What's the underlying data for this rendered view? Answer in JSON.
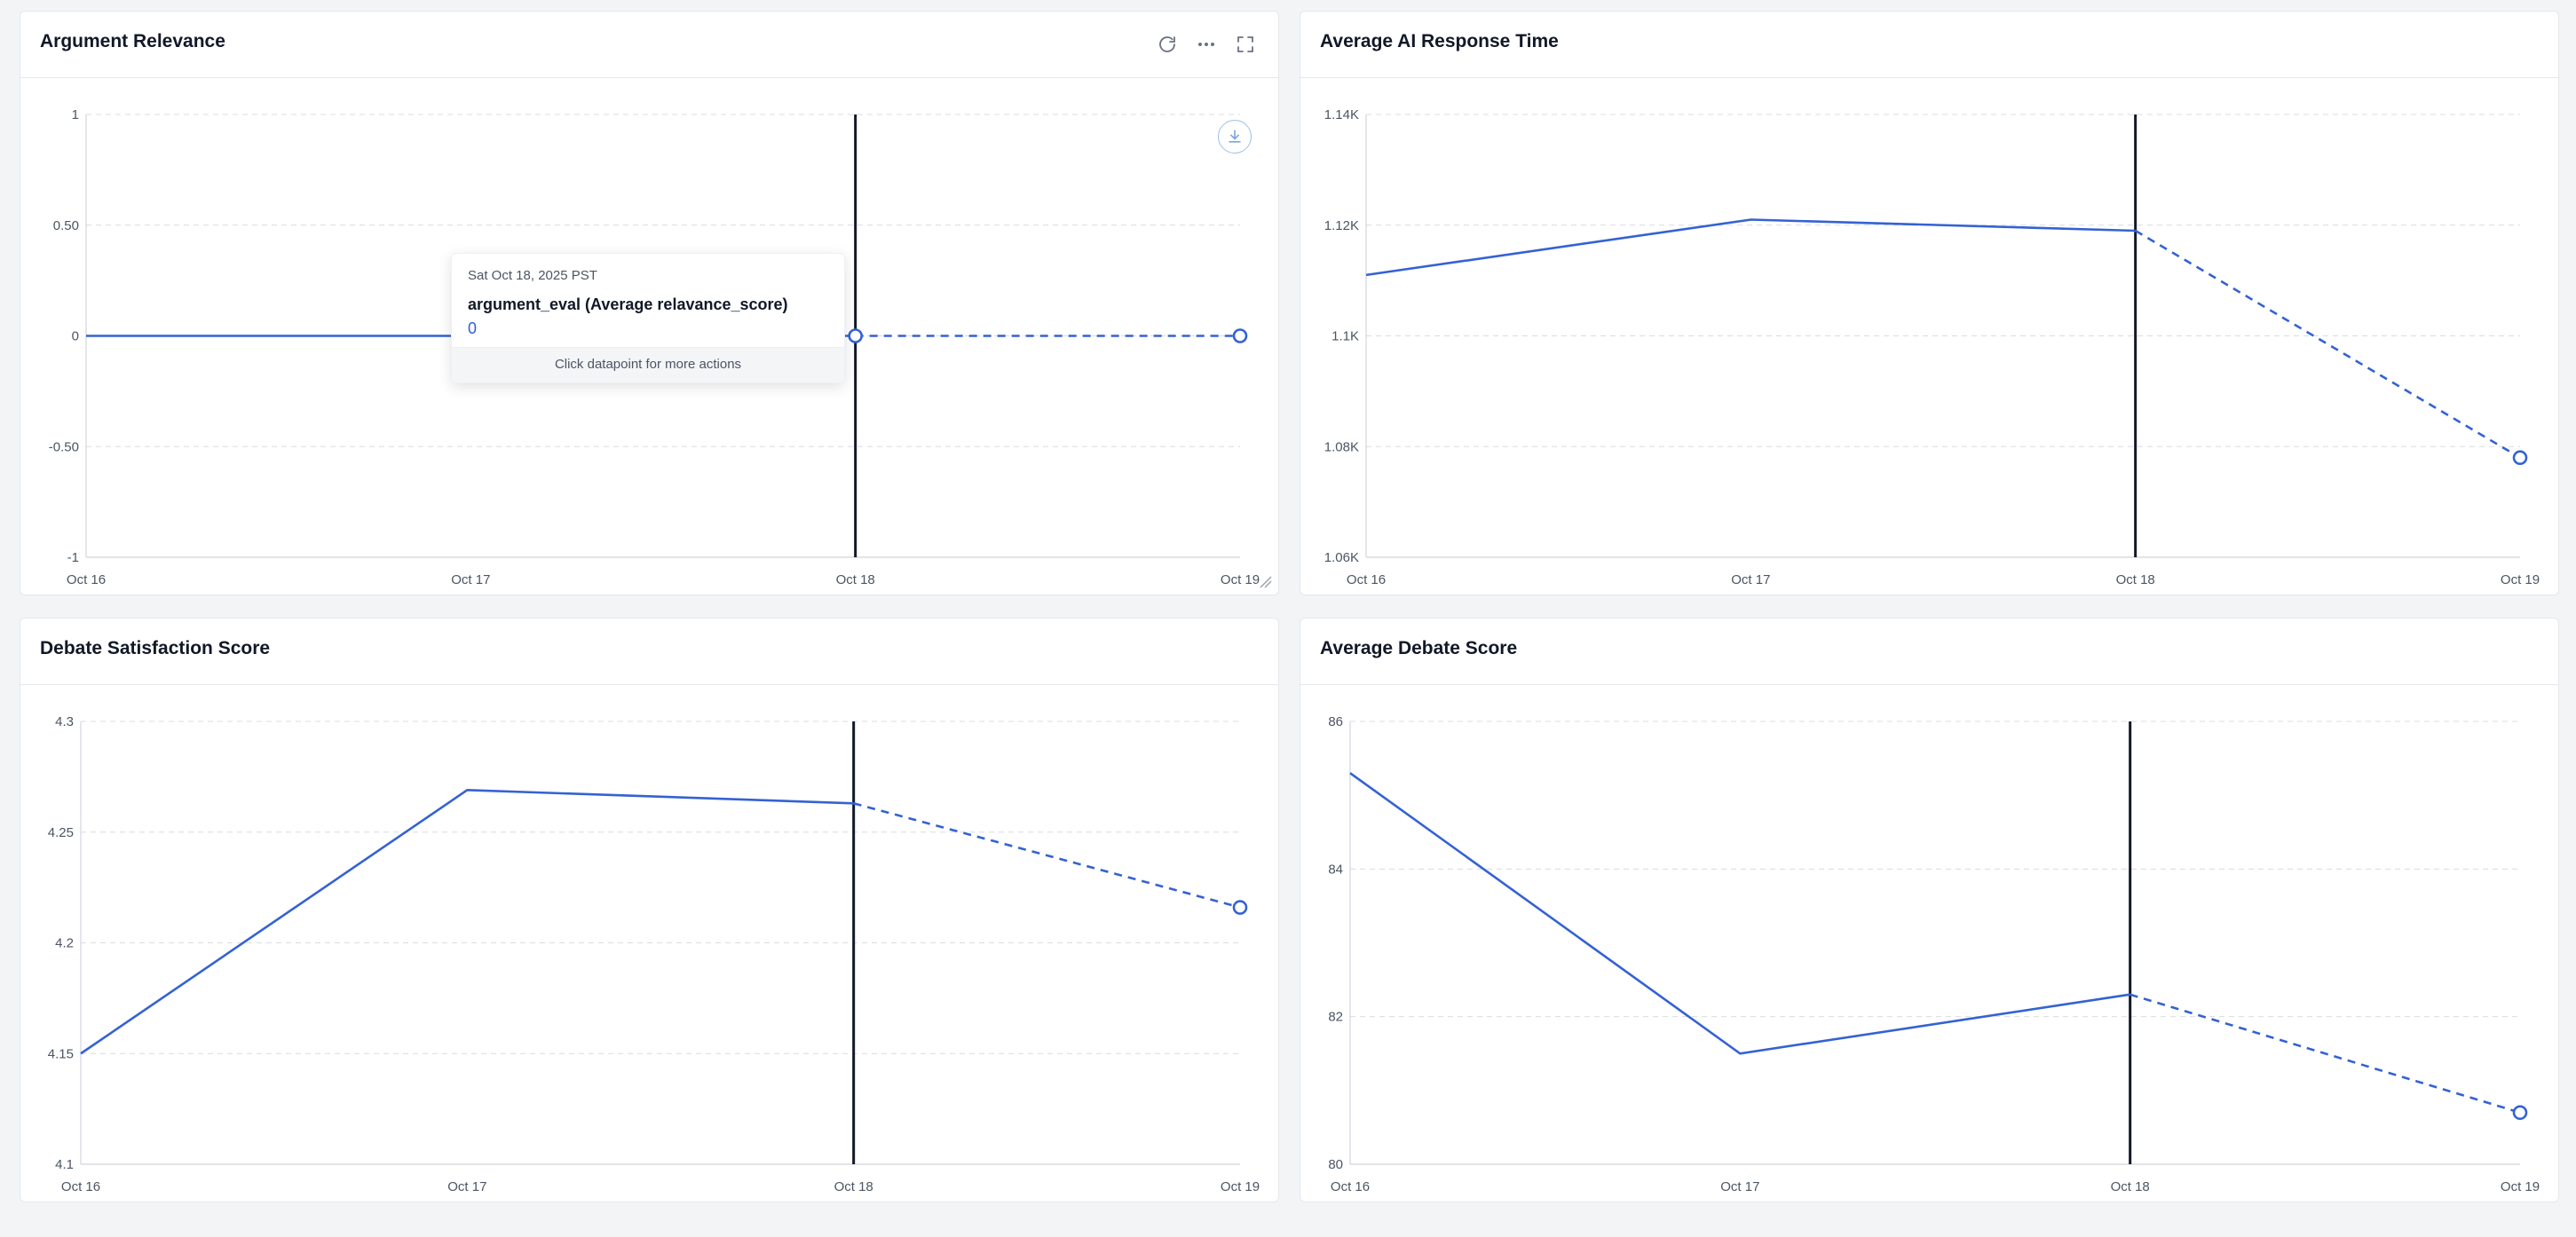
{
  "panels": [
    {
      "id": "argument-relevance",
      "title": "Argument Relevance",
      "show_actions": true,
      "icons": [
        "refresh-icon",
        "more-icon",
        "fullscreen-icon"
      ],
      "show_download": true,
      "show_resize": true,
      "tooltip": {
        "date": "Sat Oct 18, 2025 PST",
        "series": "argument_eval (Average relavance_score)",
        "value": "0",
        "footer": "Click datapoint for more actions"
      },
      "chart_data": {
        "type": "line",
        "x": [
          "Oct 16",
          "Oct 17",
          "Oct 18",
          "Oct 19"
        ],
        "values": [
          0,
          0,
          0,
          0
        ],
        "solid_until_index": 2,
        "ylim": [
          -1,
          1
        ],
        "yticks": [
          -1,
          -0.5,
          0,
          0.5,
          1
        ],
        "ytick_labels": [
          "-1",
          "-0.50",
          "0",
          "0.50",
          "1"
        ],
        "marker_line_index": 2,
        "point_markers": [
          2,
          3
        ],
        "color": "#3462d4",
        "grid": true
      }
    },
    {
      "id": "average-ai-response-time",
      "title": "Average AI Response Time",
      "show_actions": false,
      "chart_data": {
        "type": "line",
        "x": [
          "Oct 16",
          "Oct 17",
          "Oct 18",
          "Oct 19"
        ],
        "values": [
          1111,
          1121,
          1119,
          1078
        ],
        "solid_until_index": 2,
        "ylim": [
          1060,
          1140
        ],
        "yticks": [
          1060,
          1080,
          1100,
          1120,
          1140
        ],
        "ytick_labels": [
          "1.06K",
          "1.08K",
          "1.1K",
          "1.12K",
          "1.14K"
        ],
        "marker_line_index": 2,
        "point_markers": [
          3
        ],
        "color": "#3462d4",
        "grid": true
      }
    },
    {
      "id": "debate-satisfaction-score",
      "title": "Debate Satisfaction Score",
      "show_actions": false,
      "chart_data": {
        "type": "line",
        "x": [
          "Oct 16",
          "Oct 17",
          "Oct 18",
          "Oct 19"
        ],
        "values": [
          4.15,
          4.269,
          4.263,
          4.216
        ],
        "solid_until_index": 2,
        "ylim": [
          4.1,
          4.3
        ],
        "yticks": [
          4.1,
          4.15,
          4.2,
          4.25,
          4.3
        ],
        "ytick_labels": [
          "4.1",
          "4.15",
          "4.2",
          "4.25",
          "4.3"
        ],
        "marker_line_index": 2,
        "point_markers": [
          3
        ],
        "color": "#3462d4",
        "grid": true
      }
    },
    {
      "id": "average-debate-score",
      "title": "Average Debate Score",
      "show_actions": false,
      "chart_data": {
        "type": "line",
        "x": [
          "Oct 16",
          "Oct 17",
          "Oct 18",
          "Oct 19"
        ],
        "values": [
          85.3,
          81.5,
          82.3,
          80.7
        ],
        "solid_until_index": 2,
        "ylim": [
          80,
          86
        ],
        "yticks": [
          80,
          82,
          84,
          86
        ],
        "ytick_labels": [
          "80",
          "82",
          "84",
          "86"
        ],
        "marker_line_index": 2,
        "point_markers": [
          3
        ],
        "color": "#3462d4",
        "grid": true
      }
    }
  ]
}
